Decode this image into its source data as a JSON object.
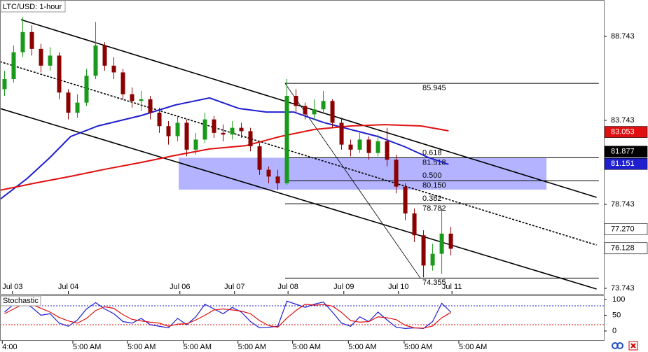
{
  "chart_data": {
    "type": "candlestick",
    "title": "LTC/USD: 1-hour",
    "x": [
      2,
      6,
      10,
      14,
      18,
      22,
      26,
      30,
      34,
      38,
      42,
      46,
      50,
      54,
      58,
      62,
      66,
      70,
      74,
      78,
      82,
      86,
      90,
      94,
      98,
      102,
      106,
      110,
      114,
      118,
      122,
      126,
      130,
      134,
      138,
      142,
      146,
      150,
      154,
      158,
      162,
      166,
      170,
      174,
      178,
      182,
      186,
      190,
      194,
      198
    ],
    "open": [
      85.6,
      86.2,
      87.8,
      89.0,
      88.0,
      87.0,
      87.6,
      85.4,
      84.2,
      84.8,
      86.4,
      88.2,
      87.0,
      86.6,
      85.3,
      84.9,
      85.0,
      84.2,
      83.4,
      82.8,
      83.6,
      82.0,
      82.6,
      83.8,
      83.0,
      82.9,
      83.3,
      83.1,
      82.2,
      80.8,
      80.4,
      80.0,
      85.2,
      84.6,
      84.1,
      84.4,
      84.9,
      83.6,
      82.3,
      82.0,
      82.6,
      81.8,
      82.5,
      81.4,
      79.8,
      78.2,
      76.9,
      75.1,
      75.8,
      77.0
    ],
    "high": [
      86.7,
      88.2,
      89.9,
      89.4,
      88.3,
      88.1,
      87.8,
      85.6,
      85.3,
      86.8,
      89.6,
      88.4,
      87.5,
      86.8,
      85.7,
      85.5,
      85.2,
      84.5,
      83.7,
      84.0,
      83.8,
      83.0,
      84.2,
      84.0,
      83.5,
      83.7,
      83.6,
      83.3,
      82.4,
      81.0,
      80.8,
      86.2,
      85.6,
      84.8,
      85.0,
      85.5,
      85.0,
      83.9,
      82.6,
      83.0,
      82.8,
      82.9,
      83.3,
      81.7,
      80.0,
      78.5,
      77.2,
      76.4,
      78.5,
      77.4
    ],
    "low": [
      85.2,
      86.0,
      87.5,
      87.6,
      86.6,
      86.7,
      85.0,
      83.8,
      83.9,
      84.6,
      86.2,
      86.7,
      86.2,
      85.0,
      84.5,
      84.3,
      83.8,
      83.0,
      82.3,
      82.5,
      81.6,
      81.7,
      82.4,
      82.7,
      82.5,
      82.6,
      82.7,
      81.9,
      80.5,
      80.0,
      79.6,
      79.9,
      84.2,
      83.8,
      83.8,
      84.2,
      83.3,
      82.0,
      81.6,
      81.8,
      81.4,
      81.6,
      81.0,
      79.4,
      77.8,
      76.5,
      74.4,
      74.8,
      74.6,
      75.7
    ],
    "close": [
      86.2,
      87.8,
      89.0,
      88.0,
      87.0,
      87.6,
      85.4,
      84.2,
      84.8,
      86.4,
      88.2,
      87.0,
      86.6,
      85.3,
      84.9,
      85.0,
      84.2,
      83.4,
      82.8,
      83.6,
      82.0,
      82.6,
      83.8,
      83.0,
      82.9,
      83.3,
      83.1,
      82.2,
      80.8,
      80.4,
      80.0,
      85.2,
      84.6,
      84.1,
      84.4,
      84.9,
      83.6,
      82.3,
      82.0,
      82.6,
      81.8,
      82.5,
      81.4,
      79.8,
      78.2,
      76.9,
      75.1,
      75.8,
      77.0,
      76.1
    ],
    "up_color": "#1a9a1a",
    "down_color": "#8b0000",
    "moving_averages": [
      {
        "color": "#1f1fd0",
        "x": [
          0,
          12,
          22,
          31,
          43,
          62,
          77,
          92,
          105,
          117,
          129,
          142,
          154,
          166,
          178,
          188,
          197
        ],
        "values": [
          79.04,
          80.29,
          81.54,
          82.78,
          83.41,
          84.03,
          84.66,
          85.08,
          84.45,
          84.24,
          84.24,
          83.62,
          83.2,
          82.78,
          82.16,
          81.54,
          81.12
        ]
      },
      {
        "color": "#e01010",
        "x": [
          0,
          15,
          31,
          46,
          62,
          77,
          92,
          108,
          123,
          138,
          154,
          169,
          185,
          197
        ],
        "values": [
          79.58,
          80.0,
          80.41,
          80.83,
          81.24,
          81.66,
          82.04,
          82.24,
          82.78,
          83.2,
          83.41,
          83.49,
          83.41,
          83.12
        ]
      }
    ],
    "trendlines": [
      {
        "x": [
          9.2,
          262
        ],
        "y": [
          89.74,
          79.16
        ],
        "dashed": false
      },
      {
        "x": [
          0,
          262
        ],
        "y": [
          87.24,
          76.32
        ],
        "dashed": true
      },
      {
        "x": [
          0,
          262
        ],
        "y": [
          84.45,
          73.7
        ],
        "dashed": false
      },
      {
        "x": [
          125.2,
          184.6
        ],
        "y": [
          85.945,
          74.355
        ],
        "dashed": false,
        "thin": true
      }
    ],
    "zone": {
      "x": [
        78.5,
        240
      ],
      "y": [
        79.62,
        81.518
      ],
      "color": "#8080ff"
    },
    "fib": {
      "x": [
        125.2,
        263
      ],
      "levels": [
        {
          "price": 85.945
        },
        {
          "ratio": 0.618,
          "price": 81.518
        },
        {
          "ratio": {
            "value": 0.5,
            "label": "0.500"
          },
          "price": {
            "value": 80.15,
            "label": "80.150"
          }
        },
        {
          "ratio": 0.382,
          "price": 78.782
        },
        {
          "price": 74.355
        }
      ]
    },
    "xlim": [
      0,
      265.2
    ],
    "ylim": [
      73.41,
      90.91
    ],
    "yticks": [
      88.743,
      83.743,
      78.743,
      73.743
    ],
    "price_tags": [
      {
        "value": 83.053,
        "bg": "#e01010",
        "fg": "#ffffff"
      },
      {
        "value": 81.877,
        "bg": "#000000",
        "fg": "#ffffff"
      },
      {
        "value": 81.151,
        "bg": "#1f1fd0",
        "fg": "#ffffff"
      },
      {
        "value": 77.27,
        "label": "77.270",
        "bg": "#ffffff",
        "fg": "#000000"
      },
      {
        "value": 76.128,
        "bg": "#ffffff",
        "fg": "#000000"
      }
    ],
    "date_ticks": [
      {
        "value": 5.5,
        "label": "Jul 03"
      },
      {
        "value": 30,
        "label": "Jul 04"
      },
      {
        "value": 79,
        "label": "Jul 06"
      },
      {
        "value": 103,
        "label": "Jul 07"
      },
      {
        "value": 126.5,
        "label": "Jul 08"
      },
      {
        "value": 151,
        "label": "Jul 09"
      },
      {
        "value": 175,
        "label": "Jul 10"
      },
      {
        "value": 198.5,
        "label": "Jul 11"
      }
    ],
    "time_ticks": [
      {
        "value": 1,
        "label": "4:00"
      },
      {
        "value": 32,
        "label": "5:00 AM"
      },
      {
        "value": 56,
        "label": "5:00 AM"
      },
      {
        "value": 80.5,
        "label": "5:00 AM"
      },
      {
        "value": 104.5,
        "label": "5:00 AM"
      },
      {
        "value": 128.5,
        "label": "5:00 AM"
      },
      {
        "value": 153,
        "label": "5:00 AM"
      },
      {
        "value": 177.5,
        "label": "5:00 AM"
      },
      {
        "value": 201.5,
        "label": "5:00 AM"
      }
    ],
    "stochastic": {
      "title": "Stochastic",
      "ylim": [
        0,
        100
      ],
      "yticks": [
        0,
        50,
        100
      ],
      "levels": [
        20,
        80
      ],
      "series": [
        {
          "color": "#1f1fd0",
          "values": [
            60,
            85,
            92,
            75,
            50,
            55,
            25,
            15,
            35,
            70,
            90,
            70,
            55,
            30,
            25,
            40,
            20,
            15,
            10,
            40,
            20,
            45,
            85,
            70,
            55,
            75,
            60,
            30,
            10,
            12,
            15,
            95,
            85,
            75,
            85,
            92,
            60,
            25,
            15,
            45,
            30,
            60,
            35,
            12,
            8,
            10,
            8,
            30,
            88,
            60
          ]
        },
        {
          "color": "#e01010",
          "values": [
            55,
            70,
            85,
            84,
            72,
            60,
            43,
            32,
            25,
            40,
            65,
            77,
            72,
            52,
            37,
            32,
            28,
            25,
            15,
            22,
            23,
            35,
            50,
            67,
            70,
            67,
            63,
            55,
            33,
            17,
            12,
            41,
            65,
            85,
            82,
            84,
            79,
            59,
            33,
            28,
            30,
            45,
            42,
            36,
            18,
            10,
            9,
            16,
            42,
            59
          ]
        }
      ]
    }
  }
}
